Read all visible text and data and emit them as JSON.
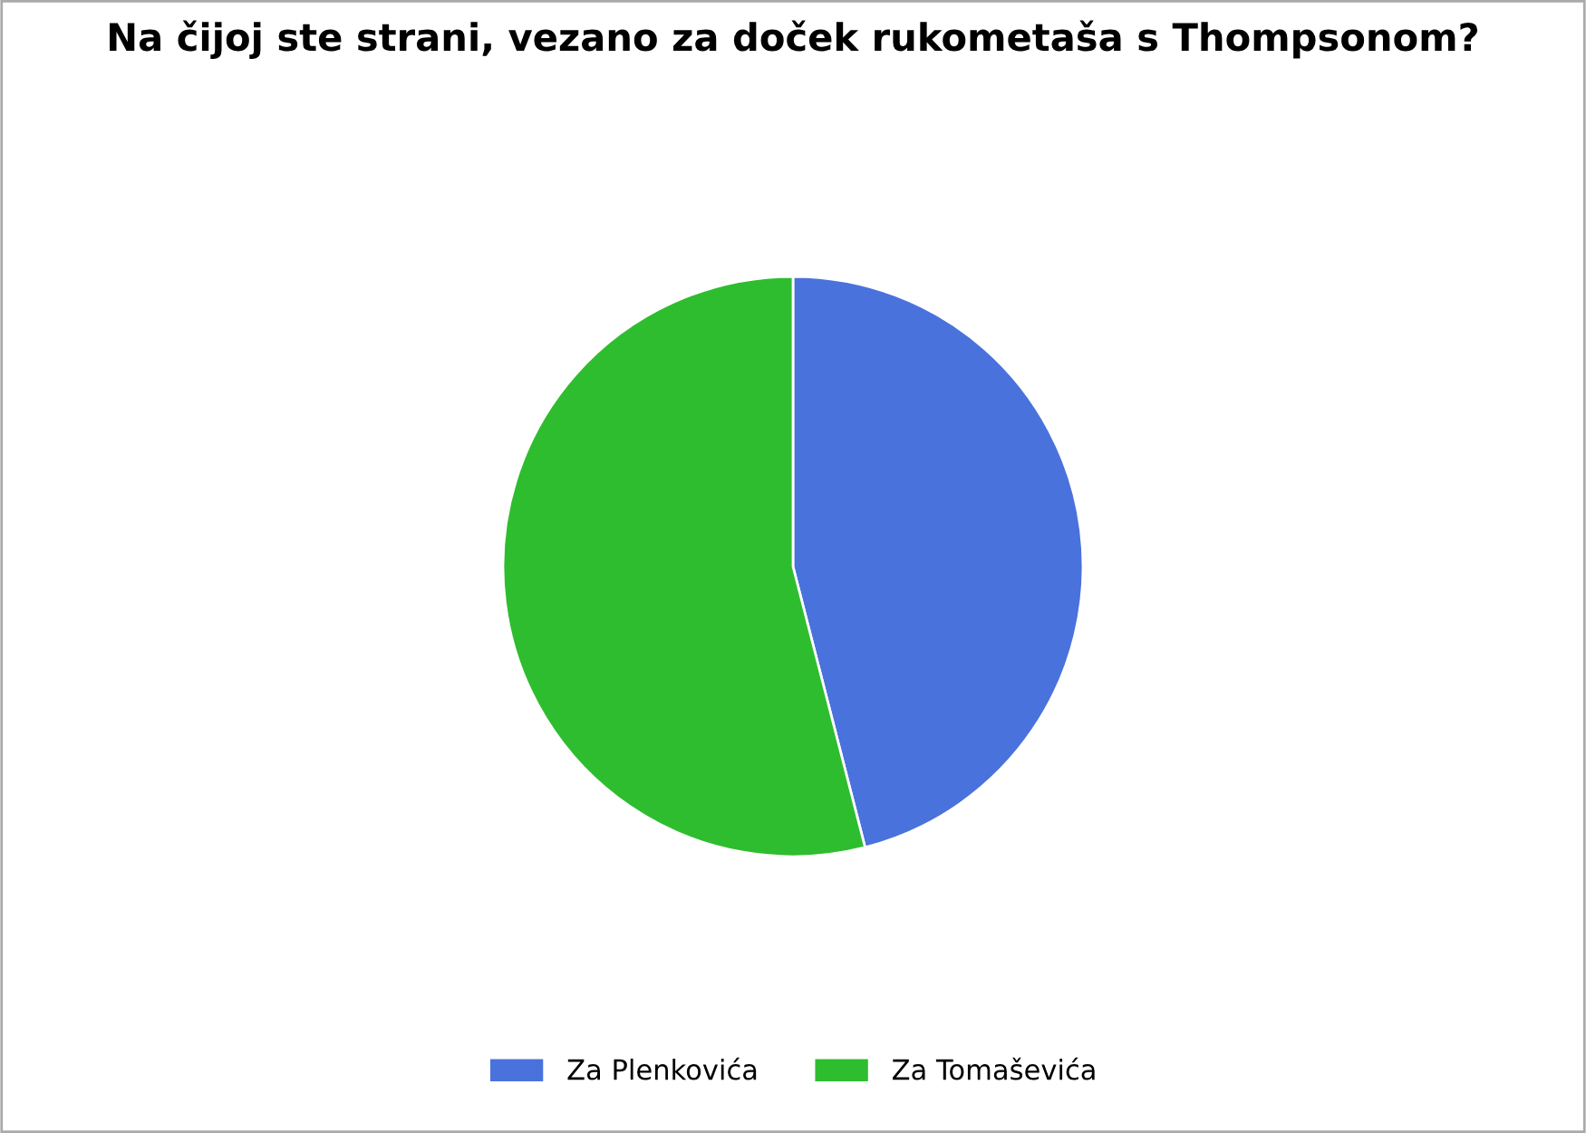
{
  "chart_data": {
    "type": "pie",
    "title": "Na čijoj ste strani, vezano za doček rukometaša s Thompsonom?",
    "categories": [
      "Za Plenkovića",
      "Za Tomaševića"
    ],
    "values": [
      46,
      54
    ],
    "colors": [
      "#4a72dc",
      "#2ebd2e"
    ],
    "legend": "bottom"
  }
}
